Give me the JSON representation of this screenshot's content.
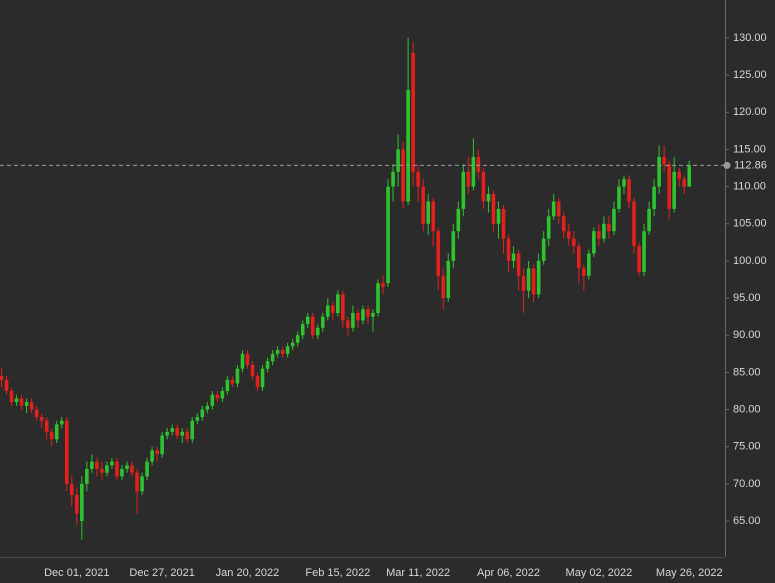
{
  "chart_data": {
    "type": "candlestick",
    "categories": [
      null,
      null,
      null,
      null,
      null,
      null,
      null,
      null,
      null,
      null,
      null,
      null,
      null,
      null,
      null,
      "Dec 01, 2021",
      null,
      null,
      null,
      null,
      null,
      null,
      null,
      null,
      null,
      null,
      null,
      null,
      null,
      null,
      null,
      null,
      "Dec 27, 2021",
      null,
      null,
      null,
      null,
      null,
      null,
      null,
      null,
      null,
      null,
      null,
      null,
      null,
      null,
      null,
      null,
      "Jan 20, 2022",
      null,
      null,
      null,
      null,
      null,
      null,
      null,
      null,
      null,
      null,
      null,
      null,
      null,
      null,
      null,
      null,
      null,
      "Feb 15, 2022",
      null,
      null,
      null,
      null,
      null,
      null,
      null,
      null,
      null,
      null,
      null,
      null,
      null,
      null,
      null,
      "Mar 11, 2022",
      null,
      null,
      null,
      null,
      null,
      null,
      null,
      null,
      null,
      null,
      null,
      null,
      null,
      null,
      null,
      null,
      null,
      "Apr 06, 2022",
      null,
      null,
      null,
      null,
      null,
      null,
      null,
      null,
      null,
      null,
      null,
      null,
      null,
      null,
      null,
      null,
      null,
      "May 02, 2022",
      null,
      null,
      null,
      null,
      null,
      null,
      null,
      null,
      null,
      null,
      null,
      null,
      null,
      null,
      null,
      null,
      null,
      "May 26, 2022"
    ],
    "open": [
      84.5,
      84,
      82.5,
      81,
      81.5,
      80.5,
      81,
      80,
      79,
      78.5,
      77,
      76,
      78,
      78.5,
      70,
      68.5,
      65,
      70,
      72,
      73,
      72,
      71.5,
      72.5,
      73,
      71,
      72,
      72.5,
      71.5,
      69,
      71,
      73,
      74.5,
      74,
      76.5,
      77,
      77.5,
      76.5,
      77,
      76,
      78.5,
      79,
      80,
      80.5,
      82,
      81.5,
      82.5,
      84,
      83.5,
      85.5,
      87.5,
      86,
      84.5,
      83,
      85.5,
      86.5,
      87.5,
      88,
      87.5,
      88.5,
      89,
      90,
      91.5,
      92.5,
      90,
      91,
      92.5,
      94,
      93,
      95.5,
      92,
      91,
      93,
      92,
      93.5,
      92.5,
      93,
      97,
      97,
      110,
      112,
      115,
      108,
      128,
      112,
      110,
      105,
      108,
      104,
      98,
      95,
      100,
      104,
      107,
      112,
      110,
      114,
      112,
      108,
      109,
      105,
      107,
      103,
      100,
      101,
      98,
      96,
      99,
      95.5,
      100,
      103,
      106,
      108,
      106,
      104,
      103,
      102,
      99,
      98,
      101,
      104,
      103,
      105,
      104,
      107,
      110,
      111,
      108,
      102,
      98.5,
      104,
      107,
      110,
      114,
      113,
      107,
      112,
      111,
      110
    ],
    "high": [
      85.5,
      84.5,
      83,
      82,
      82,
      81.5,
      81.5,
      80.5,
      79.5,
      79,
      77.5,
      78.5,
      79,
      79,
      71,
      69.5,
      71,
      73,
      74,
      73.5,
      73,
      73,
      73.5,
      73.5,
      72.5,
      73,
      73,
      72,
      71.5,
      73.5,
      75,
      75,
      77,
      77.5,
      78,
      78,
      77.5,
      77.5,
      79,
      79.5,
      80.5,
      81,
      82.5,
      82.5,
      83,
      84.5,
      84.5,
      86,
      88,
      88,
      86.5,
      85,
      86,
      87,
      88,
      88.5,
      88.5,
      89,
      89.5,
      90.5,
      92,
      93,
      93,
      91.5,
      93,
      95,
      94.5,
      96,
      96,
      92.5,
      94,
      93.5,
      94,
      94,
      93.5,
      97.5,
      98,
      111,
      113,
      117,
      116,
      130,
      129.5,
      113,
      111,
      109,
      108.5,
      104.5,
      99,
      101,
      105,
      108,
      113,
      114,
      116.5,
      115,
      112.5,
      110,
      109.5,
      108,
      107.5,
      103.5,
      102,
      101.5,
      99,
      100,
      99.5,
      101,
      104,
      107,
      109,
      108.5,
      106.5,
      105,
      104,
      102.5,
      99.5,
      101.5,
      104.5,
      105,
      106,
      106,
      108,
      111,
      111.5,
      111.5,
      108.5,
      102.5,
      105,
      108,
      111,
      115.5,
      115.5,
      113.5,
      114,
      112.5,
      111.5,
      113.5
    ],
    "low": [
      83,
      82,
      80.5,
      80.5,
      80,
      79.5,
      79.5,
      78.5,
      77.5,
      76,
      75,
      75.5,
      77.5,
      69,
      67,
      64.5,
      62.5,
      69,
      71.5,
      71,
      70.5,
      71,
      72,
      70.5,
      70.5,
      71.5,
      71,
      66,
      68.5,
      70.5,
      72.5,
      73,
      73.5,
      76,
      76.5,
      76,
      75.5,
      75.5,
      75.5,
      78,
      78.5,
      79.5,
      80,
      81,
      81,
      82,
      83,
      83,
      85,
      85.5,
      84,
      82.5,
      82.5,
      85,
      86,
      87,
      87,
      87,
      88,
      88.5,
      89.5,
      91,
      89.5,
      89.5,
      90.5,
      92,
      92,
      92.5,
      91,
      90,
      90.5,
      91,
      91.5,
      91.5,
      90.5,
      92.5,
      95.5,
      96.5,
      108,
      110,
      107,
      107.5,
      110,
      108,
      104,
      103.5,
      102,
      96,
      93.5,
      94.5,
      99,
      103,
      106,
      109,
      109.5,
      111,
      107,
      106.5,
      104,
      103,
      101,
      98.5,
      99,
      96,
      93,
      95,
      94.5,
      95,
      99.5,
      102,
      105.5,
      105,
      103,
      102,
      101,
      97,
      96,
      97.5,
      100.5,
      102,
      102.5,
      103,
      103.5,
      106.5,
      109,
      107,
      101,
      98,
      98,
      103.5,
      106,
      109,
      112,
      105.5,
      106.5,
      110,
      109,
      110
    ],
    "close": [
      84,
      82.5,
      81,
      81.5,
      80.5,
      81,
      80,
      79,
      78.5,
      77,
      76,
      78,
      78.5,
      70,
      68.5,
      66,
      70,
      72,
      73,
      72,
      71.5,
      72.5,
      73,
      71,
      72,
      72.5,
      71.5,
      69,
      71,
      73,
      74.5,
      74,
      76.5,
      77,
      77.5,
      76.5,
      77,
      76,
      78.5,
      79,
      80,
      80.5,
      82,
      81.5,
      82.5,
      84,
      83.5,
      85.5,
      87.5,
      86,
      84.5,
      83,
      85.5,
      86.5,
      87.5,
      88,
      87.5,
      88.5,
      89,
      90,
      91.5,
      92.5,
      90,
      91,
      92.5,
      94,
      93,
      95.5,
      92,
      91,
      93,
      92,
      93.5,
      92.5,
      93,
      97,
      96.5,
      110,
      112,
      115,
      108,
      123,
      112,
      110,
      105,
      108,
      104,
      98,
      95,
      100,
      104,
      107,
      112,
      110,
      114,
      112,
      108,
      109,
      105,
      107,
      103,
      100,
      101,
      98,
      96,
      99,
      95.5,
      100,
      103,
      106,
      108,
      106,
      104,
      103,
      102,
      99,
      98,
      101,
      104,
      103,
      105,
      104,
      107,
      110,
      111,
      108,
      102,
      98.5,
      104,
      107,
      110,
      114,
      113,
      107,
      112,
      111,
      110,
      112.86
    ],
    "up_color": "#2fc42f",
    "down_color": "#e3201c",
    "ylim": [
      60.16,
      135.11
    ],
    "yticks": [
      {
        "value": 65,
        "label": "65.00"
      },
      {
        "value": 70,
        "label": "70.00"
      },
      {
        "value": 75,
        "label": "75.00"
      },
      {
        "value": 80,
        "label": "80.00"
      },
      {
        "value": 85,
        "label": "85.00"
      },
      {
        "value": 90,
        "label": "90.00"
      },
      {
        "value": 95,
        "label": "95.00"
      },
      {
        "value": 100,
        "label": "100.00"
      },
      {
        "value": 105,
        "label": "105.00"
      },
      {
        "value": 110,
        "label": "110.00"
      },
      {
        "value": 115,
        "label": "115.00"
      },
      {
        "value": 120,
        "label": "120.00"
      },
      {
        "value": 125,
        "label": "125.00"
      },
      {
        "value": 130,
        "label": "130.00"
      }
    ],
    "last_price": 112.86
  }
}
